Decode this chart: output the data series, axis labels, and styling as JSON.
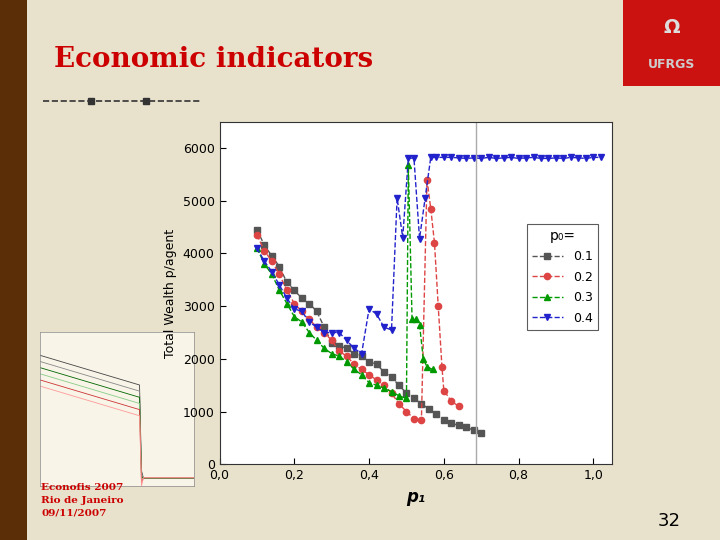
{
  "title": "Economic indicators",
  "title_color": "#cc0000",
  "title_fontsize": 20,
  "bg_color": "#e8e2cc",
  "plot_bg_color": "#ffffff",
  "ylabel": "Total Wealth p/agent",
  "xlabel": "p₁",
  "xlim": [
    0.0,
    1.05
  ],
  "ylim": [
    0,
    6500
  ],
  "xticks": [
    0.0,
    0.2,
    0.4,
    0.6,
    0.8,
    1.0
  ],
  "xtick_labels": [
    "0,0",
    "0,2",
    "0,4",
    "0,6",
    "0,8",
    "1,0"
  ],
  "yticks": [
    0,
    1000,
    2000,
    3000,
    4000,
    5000,
    6000
  ],
  "legend_title": "p₀=",
  "series": [
    {
      "label": "0.1",
      "color": "#555555",
      "marker": "s",
      "linestyle": "--",
      "x": [
        0.1,
        0.12,
        0.14,
        0.16,
        0.18,
        0.2,
        0.22,
        0.24,
        0.26,
        0.28,
        0.3,
        0.32,
        0.34,
        0.36,
        0.38,
        0.4,
        0.42,
        0.44,
        0.46,
        0.48,
        0.5,
        0.52,
        0.54,
        0.56,
        0.58,
        0.6,
        0.62,
        0.64,
        0.66,
        0.68,
        0.7
      ],
      "y": [
        4450,
        4150,
        3950,
        3750,
        3450,
        3300,
        3150,
        3050,
        2900,
        2600,
        2300,
        2250,
        2200,
        2100,
        2050,
        1950,
        1900,
        1750,
        1650,
        1500,
        1350,
        1250,
        1150,
        1050,
        950,
        850,
        780,
        740,
        700,
        650,
        600
      ]
    },
    {
      "label": "0.2",
      "color": "#dd4444",
      "marker": "o",
      "linestyle": "--",
      "x": [
        0.1,
        0.12,
        0.14,
        0.16,
        0.18,
        0.2,
        0.22,
        0.24,
        0.26,
        0.28,
        0.3,
        0.32,
        0.34,
        0.36,
        0.38,
        0.4,
        0.42,
        0.44,
        0.46,
        0.48,
        0.5,
        0.52,
        0.54,
        0.555,
        0.565,
        0.575,
        0.585,
        0.595,
        0.6,
        0.62,
        0.64
      ],
      "y": [
        4350,
        4050,
        3850,
        3600,
        3300,
        3050,
        2900,
        2750,
        2600,
        2500,
        2350,
        2150,
        2050,
        1900,
        1800,
        1700,
        1600,
        1500,
        1350,
        1150,
        1000,
        870,
        840,
        5400,
        4850,
        4200,
        3000,
        1850,
        1400,
        1200,
        1100
      ]
    },
    {
      "label": "0.3",
      "color": "#009900",
      "marker": "^",
      "linestyle": "--",
      "x": [
        0.1,
        0.12,
        0.14,
        0.16,
        0.18,
        0.2,
        0.22,
        0.24,
        0.26,
        0.28,
        0.3,
        0.32,
        0.34,
        0.36,
        0.38,
        0.4,
        0.42,
        0.44,
        0.46,
        0.48,
        0.5,
        0.505,
        0.515,
        0.525,
        0.535,
        0.545,
        0.555,
        0.57,
        0.58,
        0.59
      ],
      "y": [
        4100,
        3800,
        3600,
        3300,
        3050,
        2800,
        2700,
        2500,
        2350,
        2200,
        2100,
        2050,
        1950,
        1800,
        1700,
        1550,
        1500,
        1450,
        1380,
        1300,
        1250,
        5680,
        2750,
        2750,
        2650,
        2000,
        1850,
        1800,
        null,
        null
      ]
    },
    {
      "label": "0.4",
      "color": "#2222cc",
      "marker": "v",
      "linestyle": "--",
      "x": [
        0.1,
        0.12,
        0.14,
        0.16,
        0.18,
        0.2,
        0.22,
        0.24,
        0.26,
        0.28,
        0.3,
        0.32,
        0.34,
        0.36,
        0.38,
        0.4,
        0.42,
        0.44,
        0.46,
        0.475,
        0.49,
        0.505,
        0.52,
        0.535,
        0.55,
        0.565,
        0.58,
        0.6,
        0.62,
        0.64,
        0.66,
        0.68,
        0.7,
        0.72,
        0.74,
        0.76,
        0.78,
        0.8,
        0.82,
        0.84,
        0.86,
        0.88,
        0.9,
        0.92,
        0.94,
        0.96,
        0.98,
        1.0,
        1.02
      ],
      "y": [
        4100,
        3850,
        3650,
        3400,
        3150,
        2950,
        2900,
        2700,
        2600,
        2500,
        2500,
        2500,
        2350,
        2200,
        2100,
        2950,
        2850,
        2600,
        2550,
        5050,
        4300,
        5800,
        5810,
        4280,
        5050,
        5820,
        5820,
        5820,
        5820,
        5810,
        5800,
        5810,
        5800,
        5820,
        5800,
        5810,
        5820,
        5800,
        5810,
        5820,
        5800,
        5800,
        5810,
        5800,
        5820,
        5810,
        5800,
        5820,
        5820
      ]
    }
  ],
  "vline_x": 0.685,
  "vline_color": "#aaaaaa",
  "vline_style": "-",
  "bottom_text": [
    "Econofis 2007",
    "Rio de Janeiro",
    "09/11/2007"
  ],
  "bottom_text_color": "#cc0000",
  "page_number": "32",
  "sidebar_color": "#5c2e08",
  "logo_bg": "#cc1111",
  "logo_text": "UFRGS"
}
